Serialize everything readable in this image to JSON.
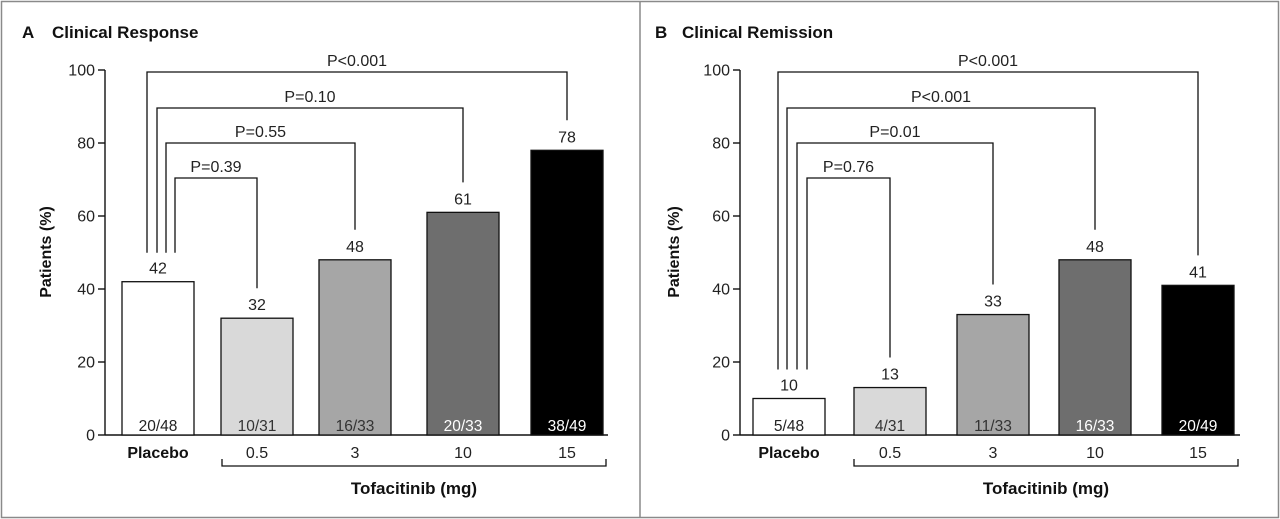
{
  "chart_data": [
    {
      "panel_letter": "A",
      "title": "Clinical Response",
      "type": "bar",
      "ylabel": "Patients (%)",
      "xlabel": "",
      "group_label": "Tofacitinib (mg)",
      "ylim": [
        0,
        100
      ],
      "yticks": [
        0,
        20,
        40,
        60,
        80,
        100
      ],
      "categories": [
        "Placebo",
        "0.5",
        "3",
        "10",
        "15"
      ],
      "values": [
        42,
        32,
        48,
        61,
        78
      ],
      "counts": [
        "20/48",
        "10/31",
        "16/33",
        "20/33",
        "38/49"
      ],
      "bar_colors": [
        "#ffffff",
        "#d9d9d9",
        "#a6a6a6",
        "#6e6e6e",
        "#000000"
      ],
      "count_text_colors": [
        "#222222",
        "#333333",
        "#333333",
        "#ffffff",
        "#ffffff"
      ],
      "comparisons": [
        {
          "from_index": 0,
          "to_index": 4,
          "label": "P<0.001"
        },
        {
          "from_index": 0,
          "to_index": 3,
          "label": "P=0.10"
        },
        {
          "from_index": 0,
          "to_index": 2,
          "label": "P=0.55"
        },
        {
          "from_index": 0,
          "to_index": 1,
          "label": "P=0.39"
        }
      ]
    },
    {
      "panel_letter": "B",
      "title": "Clinical Remission",
      "type": "bar",
      "ylabel": "Patients (%)",
      "xlabel": "",
      "group_label": "Tofacitinib (mg)",
      "ylim": [
        0,
        100
      ],
      "yticks": [
        0,
        20,
        40,
        60,
        80,
        100
      ],
      "categories": [
        "Placebo",
        "0.5",
        "3",
        "10",
        "15"
      ],
      "values": [
        10,
        13,
        33,
        48,
        41
      ],
      "counts": [
        "5/48",
        "4/31",
        "11/33",
        "16/33",
        "20/49"
      ],
      "bar_colors": [
        "#ffffff",
        "#d9d9d9",
        "#a6a6a6",
        "#6e6e6e",
        "#000000"
      ],
      "count_text_colors": [
        "#222222",
        "#333333",
        "#333333",
        "#ffffff",
        "#ffffff"
      ],
      "comparisons": [
        {
          "from_index": 0,
          "to_index": 4,
          "label": "P<0.001"
        },
        {
          "from_index": 0,
          "to_index": 3,
          "label": "P<0.001"
        },
        {
          "from_index": 0,
          "to_index": 2,
          "label": "P=0.01"
        },
        {
          "from_index": 0,
          "to_index": 1,
          "label": "P=0.76"
        }
      ]
    }
  ]
}
